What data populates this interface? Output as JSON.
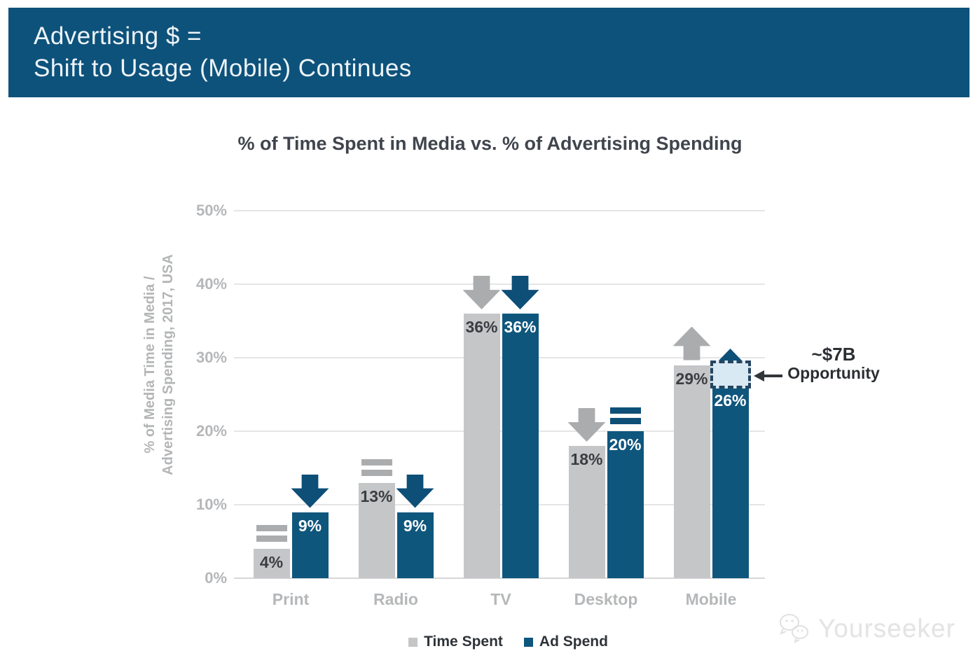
{
  "banner": {
    "line1": "Advertising $ =",
    "line2": "Shift to Usage (Mobile) Continues"
  },
  "chart_data": {
    "type": "bar",
    "title": "% of Time Spent in Media vs. % of Advertising Spending",
    "ylabel_line1": "% of Media Time in Media /",
    "ylabel_line2": "Advertising Spending, 2017, USA",
    "categories": [
      "Print",
      "Radio",
      "TV",
      "Desktop",
      "Mobile"
    ],
    "series": [
      {
        "name": "Time Spent",
        "values": [
          4,
          13,
          36,
          18,
          29
        ],
        "labels": [
          "4%",
          "13%",
          "36%",
          "18%",
          "29%"
        ],
        "markers": [
          "equal",
          "equal",
          "down",
          "down",
          "up"
        ]
      },
      {
        "name": "Ad Spend",
        "values": [
          9,
          9,
          36,
          20,
          26
        ],
        "labels": [
          "9%",
          "9%",
          "36%",
          "20%",
          "26%"
        ],
        "markers": [
          "down",
          "down",
          "down",
          "equal",
          "up"
        ]
      }
    ],
    "y_ticks": [
      "0%",
      "10%",
      "20%",
      "30%",
      "40%",
      "50%"
    ],
    "y_tick_values": [
      0,
      10,
      20,
      30,
      40,
      50
    ],
    "ylim": [
      0,
      50
    ],
    "grid": true,
    "legend_position": "bottom",
    "overlay": {
      "category": "Mobile",
      "series": "Ad Spend",
      "from_value": 26,
      "to_value": 29.6
    }
  },
  "annotation": {
    "line1": "~$7B",
    "line2": "Opportunity"
  },
  "legend": [
    {
      "label": "Time Spent",
      "color": "#c5c6c8"
    },
    {
      "label": "Ad Spend",
      "color": "#0f567d"
    }
  ],
  "watermark": {
    "text": "Yourseeker",
    "icon": "chat-bubbles-icon"
  },
  "colors": {
    "banner": "#0d527b",
    "bar_gray": "#c5c6c8",
    "bar_blue": "#0f567d",
    "marker_gray": "#aaacae",
    "marker_blue": "#0d4f77",
    "grid": "#e5e5e7",
    "axis_text": "#b5b7b9",
    "title_text": "#40454d",
    "value_dark": "#3a3d41",
    "value_light": "#ffffff",
    "overlay_fill": "#d9e9f4",
    "overlay_border": "#24455f",
    "annotation_text": "#2b2e32"
  }
}
